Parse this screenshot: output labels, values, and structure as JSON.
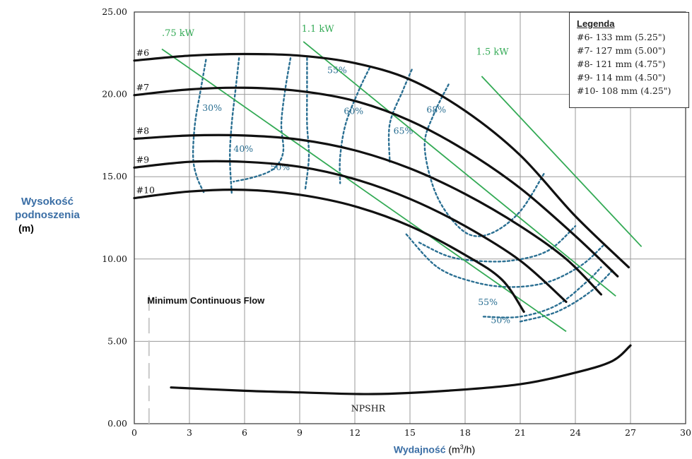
{
  "chart_data": {
    "type": "line",
    "title": "",
    "xlabel_bold": "Wydajność",
    "xlabel_unit": "(m",
    "xlabel_sup": "3",
    "xlabel_end": "/h)",
    "ylabel_lines": [
      "Wysokość",
      "podnoszenia",
      "(m)"
    ],
    "xlim": [
      0,
      30
    ],
    "ylim": [
      0,
      25
    ],
    "x_ticks": [
      "0",
      "3",
      "6",
      "9",
      "12",
      "15",
      "18",
      "21",
      "24",
      "27",
      "30"
    ],
    "y_ticks": [
      "0.00",
      "5.00",
      "10.00",
      "15.00",
      "20.00",
      "25.00"
    ],
    "grid": true,
    "legend_position": "top-right",
    "legend": {
      "title": "Legenda",
      "entries": [
        "#6- 133 mm (5.25\")",
        "#7- 127 mm (5.00\")",
        "#8- 121 mm (4.75\")",
        "#9- 114 mm (4.50\")",
        "#10- 108 mm (4.25\")"
      ]
    },
    "colors": {
      "head": "#111111",
      "power": "#33aa55",
      "efficiency": "#2a6f92",
      "frame": "#333333"
    },
    "impeller_curves": [
      {
        "label": "#6",
        "points": [
          [
            0,
            22.05
          ],
          [
            3,
            22.35
          ],
          [
            6,
            22.45
          ],
          [
            9,
            22.35
          ],
          [
            12,
            21.9
          ],
          [
            15,
            20.9
          ],
          [
            18,
            19.0
          ],
          [
            21,
            16.3
          ],
          [
            24,
            12.6
          ],
          [
            26.9,
            9.5
          ]
        ]
      },
      {
        "label": "#7",
        "points": [
          [
            0,
            19.95
          ],
          [
            3,
            20.3
          ],
          [
            6,
            20.4
          ],
          [
            9,
            20.2
          ],
          [
            12,
            19.6
          ],
          [
            15,
            18.4
          ],
          [
            18,
            16.6
          ],
          [
            21,
            14.3
          ],
          [
            24,
            11.4
          ],
          [
            26.3,
            8.95
          ]
        ]
      },
      {
        "label": "#8",
        "points": [
          [
            0,
            17.3
          ],
          [
            3,
            17.5
          ],
          [
            6,
            17.5
          ],
          [
            9,
            17.25
          ],
          [
            12,
            16.6
          ],
          [
            15,
            15.5
          ],
          [
            18,
            13.95
          ],
          [
            21,
            12.0
          ],
          [
            23.5,
            10.0
          ],
          [
            25.4,
            7.85
          ]
        ]
      },
      {
        "label": "#9",
        "points": [
          [
            0,
            15.55
          ],
          [
            3,
            15.9
          ],
          [
            6,
            15.9
          ],
          [
            9,
            15.6
          ],
          [
            12,
            14.85
          ],
          [
            15,
            13.65
          ],
          [
            18,
            12.0
          ],
          [
            21,
            9.9
          ],
          [
            23.5,
            7.4
          ]
        ]
      },
      {
        "label": "#10",
        "points": [
          [
            0,
            13.7
          ],
          [
            3,
            14.1
          ],
          [
            6,
            14.2
          ],
          [
            9,
            13.9
          ],
          [
            12,
            13.2
          ],
          [
            15,
            12.0
          ],
          [
            18,
            10.25
          ],
          [
            20,
            8.75
          ],
          [
            21.2,
            6.8
          ]
        ]
      }
    ],
    "power_lines": [
      {
        "label": ".75 kW",
        "points": [
          [
            1.5,
            22.75
          ],
          [
            23.5,
            5.6
          ]
        ],
        "label_at": [
          1.5,
          23.55
        ]
      },
      {
        "label": "1.1 kW",
        "points": [
          [
            9.2,
            23.2
          ],
          [
            26.2,
            7.75
          ]
        ],
        "label_at": [
          9.1,
          23.8
        ]
      },
      {
        "label": "1.5 kW",
        "points": [
          [
            18.9,
            21.1
          ],
          [
            27.6,
            10.75
          ]
        ],
        "label_at": [
          18.6,
          22.4
        ]
      }
    ],
    "efficiency_curves": [
      {
        "label": "30%",
        "points": [
          [
            3.9,
            22.1
          ],
          [
            3.6,
            20.2
          ],
          [
            3.3,
            18.2
          ],
          [
            3.2,
            16.2
          ],
          [
            3.4,
            15.0
          ],
          [
            3.8,
            14.0
          ]
        ],
        "label_at": [
          3.7,
          19.0
        ]
      },
      {
        "label": "40%",
        "points": [
          [
            5.7,
            22.2
          ],
          [
            5.5,
            20.2
          ],
          [
            5.3,
            18.2
          ],
          [
            5.2,
            16.2
          ],
          [
            5.3,
            14.0
          ]
        ],
        "label_at": [
          5.4,
          16.5
        ]
      },
      {
        "label": "50%",
        "points": [
          [
            8.5,
            22.2
          ],
          [
            8.2,
            20.2
          ],
          [
            8.0,
            18.2
          ],
          [
            8.1,
            16.5
          ],
          [
            7.6,
            15.5
          ],
          [
            6.6,
            15.0
          ],
          [
            5.4,
            14.7
          ]
        ],
        "label_at": [
          7.4,
          15.4
        ]
      },
      {
        "label": "55%",
        "points": [
          [
            9.4,
            22.2
          ],
          [
            9.4,
            20.2
          ],
          [
            9.4,
            18.2
          ],
          [
            9.5,
            16.2
          ],
          [
            9.3,
            14.2
          ]
        ],
        "label_at": [
          10.5,
          21.3
        ]
      },
      {
        "label": "60%",
        "points": [
          [
            12.8,
            21.6
          ],
          [
            12.2,
            20.2
          ],
          [
            11.5,
            18.2
          ],
          [
            11.2,
            16.2
          ],
          [
            11.2,
            14.6
          ]
        ],
        "label_at": [
          11.4,
          18.8
        ]
      },
      {
        "label": "65%",
        "points": [
          [
            15.1,
            21.5
          ],
          [
            14.6,
            20.2
          ],
          [
            13.9,
            18.2
          ],
          [
            13.9,
            15.9
          ]
        ],
        "label_at": [
          14.1,
          17.6
        ]
      },
      {
        "label": "68%",
        "points": [
          [
            17.1,
            20.6
          ],
          [
            16.3,
            18.8
          ],
          [
            15.8,
            17.0
          ],
          [
            16.2,
            14.6
          ],
          [
            17.0,
            12.8
          ],
          [
            18.2,
            11.5
          ],
          [
            19.5,
            11.6
          ],
          [
            21.0,
            12.9
          ],
          [
            22.3,
            15.2
          ]
        ],
        "label_at": [
          15.9,
          18.9
        ]
      },
      {
        "label": "55%",
        "points": [
          [
            14.8,
            11.5
          ],
          [
            16.5,
            9.5
          ],
          [
            18.5,
            8.6
          ],
          [
            20.5,
            8.3
          ],
          [
            22.5,
            8.6
          ],
          [
            24.3,
            9.6
          ],
          [
            25.5,
            10.8
          ]
        ],
        "label_at": [
          18.7,
          7.2
        ]
      },
      {
        "label": "50%",
        "points": [
          [
            21.0,
            6.2
          ],
          [
            23.0,
            6.8
          ],
          [
            24.8,
            8.0
          ],
          [
            26.1,
            9.4
          ]
        ],
        "label_at": [
          19.4,
          6.1
        ]
      }
    ],
    "extra_efficiency_curves": [
      [
        [
          15.5,
          11.0
        ],
        [
          17.0,
          10.2
        ],
        [
          18.5,
          9.9
        ],
        [
          20.5,
          9.9
        ],
        [
          22.5,
          10.5
        ],
        [
          24.0,
          12.0
        ]
      ],
      [
        [
          19.0,
          6.5
        ],
        [
          21.0,
          6.5
        ],
        [
          23.0,
          7.2
        ],
        [
          24.6,
          8.6
        ],
        [
          25.4,
          9.5
        ]
      ]
    ],
    "npshr": {
      "label": "NPSHR",
      "points": [
        [
          2,
          2.2
        ],
        [
          6,
          2.0
        ],
        [
          9,
          1.9
        ],
        [
          13,
          1.8
        ],
        [
          17,
          2.0
        ],
        [
          21,
          2.4
        ],
        [
          24,
          3.1
        ],
        [
          26,
          3.8
        ],
        [
          27,
          4.75
        ]
      ],
      "label_at": [
        11.8,
        0.75
      ]
    },
    "annotation": "Minimum Continuous Flow",
    "mcf_x": 0.8
  }
}
